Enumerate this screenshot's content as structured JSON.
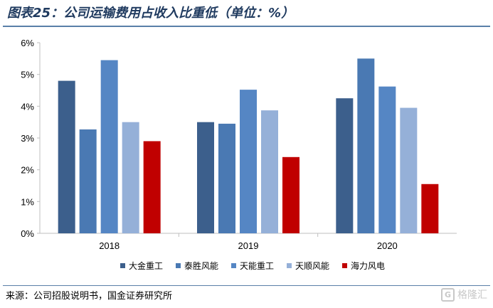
{
  "header": {
    "title": "图表25：公司运输费用占收入比重低（单位：%）"
  },
  "footer": {
    "source": "来源：公司招股说明书，国金证券研究所",
    "watermark_text": "格隆汇"
  },
  "chart_data": {
    "type": "bar",
    "title": "图表25：公司运输费用占收入比重低（单位：%）",
    "categories": [
      "2018",
      "2019",
      "2020"
    ],
    "ylim": [
      0,
      6
    ],
    "yticks": [
      0,
      1,
      2,
      3,
      4,
      5,
      6
    ],
    "ytick_labels": [
      "0%",
      "1%",
      "2%",
      "3%",
      "4%",
      "5%",
      "6%"
    ],
    "grid": false,
    "legend_position": "bottom",
    "series": [
      {
        "name": "大金重工",
        "color": "#3c5f8c",
        "values": [
          4.8,
          3.5,
          4.25
        ]
      },
      {
        "name": "泰胜风能",
        "color": "#4a79b3",
        "values": [
          3.27,
          3.45,
          5.5
        ]
      },
      {
        "name": "天能重工",
        "color": "#5586c4",
        "values": [
          5.45,
          4.52,
          4.62
        ]
      },
      {
        "name": "天顺风能",
        "color": "#95b0d8",
        "values": [
          3.5,
          3.87,
          3.95
        ]
      },
      {
        "name": "海力风电",
        "color": "#c00000",
        "values": [
          2.9,
          2.4,
          1.55
        ]
      }
    ]
  }
}
